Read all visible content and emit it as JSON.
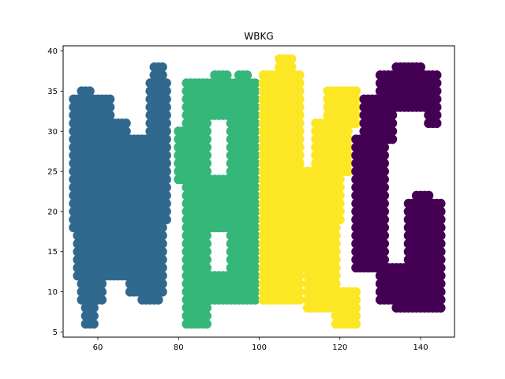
{
  "chart_data": {
    "type": "scatter",
    "title": "WBKG",
    "xlabel": "",
    "ylabel": "",
    "xlim": [
      51.4,
      148.4
    ],
    "ylim": [
      4.35,
      40.65
    ],
    "xticks": [
      60,
      80,
      100,
      120,
      140
    ],
    "yticks": [
      5,
      10,
      15,
      20,
      25,
      30,
      35,
      40
    ],
    "grid": false,
    "marker_radius_data_note": "points sampled on a lattice of the letter shapes",
    "series": [
      {
        "letter": "W",
        "color": "#31688e",
        "regions": [
          {
            "x": [
              54,
              63
            ],
            "y": [
              18,
              34
            ]
          },
          {
            "x": [
              55,
              62
            ],
            "y": [
              12,
              18
            ]
          },
          {
            "x": [
              56,
              61
            ],
            "y": [
              9,
              12
            ]
          },
          {
            "x": [
              57,
              59
            ],
            "y": [
              6,
              9
            ]
          },
          {
            "x": [
              56,
              58
            ],
            "y": [
              34,
              35
            ]
          },
          {
            "x": [
              63,
              77
            ],
            "y": [
              19,
              24
            ]
          },
          {
            "x": [
              63,
              68
            ],
            "y": [
              12,
              19
            ]
          },
          {
            "x": [
              63,
              67
            ],
            "y": [
              24,
              31
            ]
          },
          {
            "x": [
              67,
              77
            ],
            "y": [
              24,
              29
            ]
          },
          {
            "x": [
              68,
              76
            ],
            "y": [
              10,
              19
            ]
          },
          {
            "x": [
              71,
              75
            ],
            "y": [
              9,
              10
            ]
          },
          {
            "x": [
              73,
              77
            ],
            "y": [
              29,
              36
            ]
          },
          {
            "x": [
              74,
              76
            ],
            "y": [
              36,
              38
            ]
          }
        ]
      },
      {
        "letter": "B",
        "color": "#35b779",
        "regions": [
          {
            "x": [
              82,
              99
            ],
            "y": [
              32,
              36
            ]
          },
          {
            "x": [
              82,
              87
            ],
            "y": [
              6,
              32
            ]
          },
          {
            "x": [
              80,
              87
            ],
            "y": [
              24,
              30
            ]
          },
          {
            "x": [
              87,
              99
            ],
            "y": [
              18,
              24
            ]
          },
          {
            "x": [
              93,
              99
            ],
            "y": [
              24,
              32
            ]
          },
          {
            "x": [
              87,
              99
            ],
            "y": [
              9,
              12
            ]
          },
          {
            "x": [
              93,
              99
            ],
            "y": [
              12,
              18
            ]
          },
          {
            "x": [
              89,
              92
            ],
            "y": [
              36,
              37
            ]
          },
          {
            "x": [
              95,
              97
            ],
            "y": [
              36,
              37
            ]
          }
        ]
      },
      {
        "letter": "K",
        "color": "#fde725",
        "regions": [
          {
            "x": [
              101,
              110
            ],
            "y": [
              9,
              37
            ]
          },
          {
            "x": [
              105,
              108
            ],
            "y": [
              37,
              39
            ]
          },
          {
            "x": [
              110,
              120
            ],
            "y": [
              19,
              25
            ]
          },
          {
            "x": [
              110,
              119
            ],
            "y": [
              13,
              19
            ]
          },
          {
            "x": [
              112,
              119
            ],
            "y": [
              8,
              13
            ]
          },
          {
            "x": [
              114,
              122
            ],
            "y": [
              25,
              31
            ]
          },
          {
            "x": [
              117,
              124
            ],
            "y": [
              31,
              35
            ]
          },
          {
            "x": [
              119,
              124
            ],
            "y": [
              6,
              10
            ]
          }
        ]
      },
      {
        "letter": "G",
        "color": "#440154",
        "regions": [
          {
            "x": [
              124,
              131
            ],
            "y": [
              13,
              29
            ]
          },
          {
            "x": [
              126,
              133
            ],
            "y": [
              29,
              34
            ]
          },
          {
            "x": [
              130,
              144
            ],
            "y": [
              33,
              37
            ]
          },
          {
            "x": [
              134,
              140
            ],
            "y": [
              37,
              38
            ]
          },
          {
            "x": [
              130,
              140
            ],
            "y": [
              9,
              13
            ]
          },
          {
            "x": [
              134,
              145
            ],
            "y": [
              8,
              13
            ]
          },
          {
            "x": [
              137,
              145
            ],
            "y": [
              13,
              21
            ]
          },
          {
            "x": [
              139,
              142
            ],
            "y": [
              21,
              22
            ]
          },
          {
            "x": [
              142,
              144
            ],
            "y": [
              31,
              33
            ]
          }
        ]
      }
    ]
  }
}
